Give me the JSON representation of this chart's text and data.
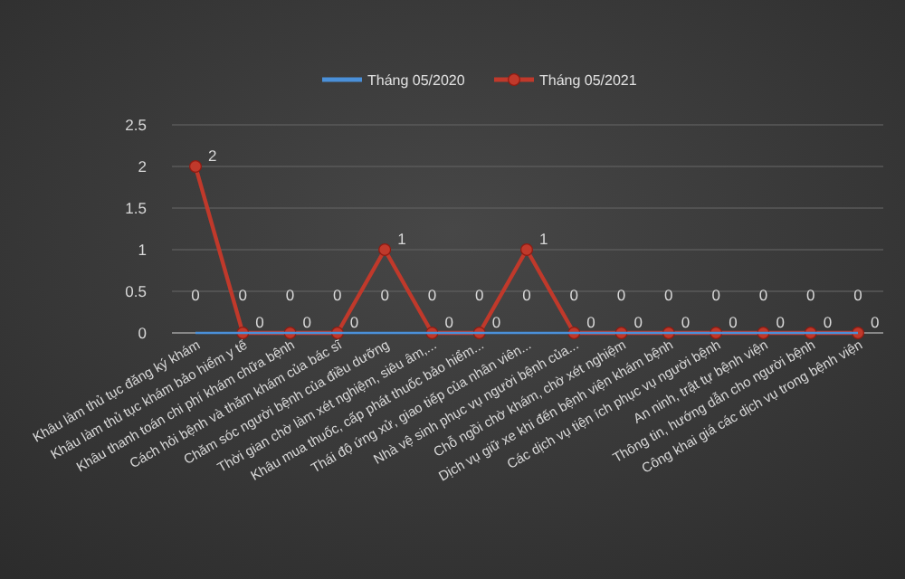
{
  "chart_data": {
    "type": "line",
    "categories": [
      "Khâu làm thủ tục đăng ký khám",
      "Khâu làm thủ tục khám bảo hiểm y tế",
      "Khâu thanh toán chi phí khám chữa bệnh",
      "Cách hỏi bệnh và thăm khám của bác sĩ",
      "Chăm sóc người bệnh của điều dưỡng",
      "Thời gian chờ làm xét nghiệm, siêu âm,...",
      "Khâu mua thuốc, cấp phát thuốc bảo hiểm...",
      "Thái độ ứng xử, giao tiếp của nhân viên...",
      "Nhà vệ sinh phục vụ người bệnh của...",
      "Chỗ ngồi chờ khám, chờ xét nghiệm",
      "Dịch vụ giữ xe khi đến bệnh viện khám bệnh",
      "Các dịch vụ tiện ích phục vụ người bệnh",
      "An ninh, trật tự bệnh viện",
      "Thông tin, hướng dẫn cho người bệnh",
      "Công khai giá các dịch vụ trong bệnh viện"
    ],
    "series": [
      {
        "name": "Tháng 05/2020",
        "color": "#4a90d9",
        "marker": "none",
        "values": [
          0,
          0,
          0,
          0,
          0,
          0,
          0,
          0,
          0,
          0,
          0,
          0,
          0,
          0,
          0
        ]
      },
      {
        "name": "Tháng 05/2021",
        "color": "#c0392b",
        "marker": "circle",
        "values": [
          2,
          0,
          0,
          0,
          1,
          0,
          0,
          1,
          0,
          0,
          0,
          0,
          0,
          0,
          0
        ]
      }
    ],
    "ylim": [
      0,
      2.5
    ],
    "yticks": [
      0,
      0.5,
      1,
      1.5,
      2,
      2.5
    ],
    "grid": "y",
    "legend": "top",
    "data_labels": true
  }
}
